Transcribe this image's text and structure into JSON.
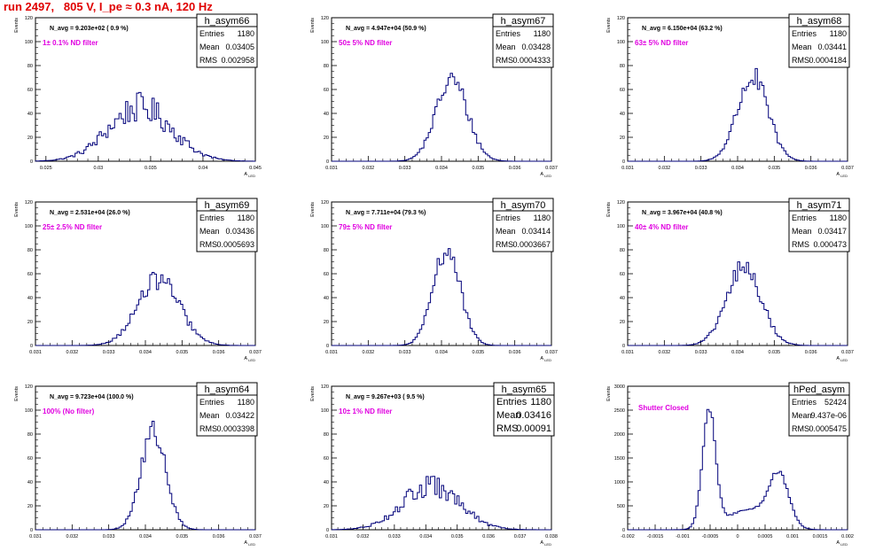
{
  "page": {
    "title": "run 2497,   805 V, I_pe ≈ 0.3 nA, 120 Hz"
  },
  "colors": {
    "hist_line": "#00007a",
    "annotation": "#e000e0",
    "title": "#e00000",
    "axis": "#000000"
  },
  "chart_data": [
    {
      "type": "histogram",
      "name": "h_asym66",
      "navg": "N_avg = 9.203e+02 ( 0.9 %)",
      "filter": "1± 0.1% ND filter",
      "stats": {
        "entries": "1180",
        "mean": "0.03405",
        "rms": "0.002958"
      },
      "ylabel": "Events",
      "xlabel": "A_LED",
      "xlim": [
        0.024,
        0.045
      ],
      "ylim": [
        0,
        120
      ],
      "xticks": [
        "0.025",
        "0.03",
        "0.035",
        "0.04",
        "0.045"
      ],
      "xtick_vals": [
        0.025,
        0.03,
        0.035,
        0.04,
        0.045
      ],
      "yticks": [
        0,
        20,
        40,
        60,
        80,
        100,
        120
      ],
      "peaks": [
        {
          "mu": 0.034,
          "sigma": 0.003,
          "amp": 45
        }
      ],
      "noise": 0.28
    },
    {
      "type": "histogram",
      "name": "h_asym67",
      "navg": "N_avg = 4.947e+04 (50.9 %)",
      "filter": "50± 5% ND filter",
      "stats": {
        "entries": "1180",
        "mean": "0.03428",
        "rms": "0.0004333"
      },
      "ylabel": "Events",
      "xlabel": "A_LED",
      "xlim": [
        0.031,
        0.037
      ],
      "ylim": [
        0,
        120
      ],
      "xticks": [
        "0.031",
        "0.032",
        "0.033",
        "0.034",
        "0.035",
        "0.036",
        "0.037"
      ],
      "xtick_vals": [
        0.031,
        0.032,
        0.033,
        0.034,
        0.035,
        0.036,
        0.037
      ],
      "yticks": [
        0,
        20,
        40,
        60,
        80,
        100,
        120
      ],
      "peaks": [
        {
          "mu": 0.03428,
          "sigma": 0.00043,
          "amp": 68
        }
      ],
      "noise": 0.14
    },
    {
      "type": "histogram",
      "name": "h_asym68",
      "navg": "N_avg = 6.150e+04 (63.2 %)",
      "filter": "63± 5% ND filter",
      "stats": {
        "entries": "1180",
        "mean": "0.03441",
        "rms": "0.0004184"
      },
      "ylabel": "Events",
      "xlabel": "A_LED",
      "xlim": [
        0.031,
        0.037
      ],
      "ylim": [
        0,
        120
      ],
      "xticks": [
        "0.031",
        "0.032",
        "0.033",
        "0.034",
        "0.035",
        "0.036",
        "0.037"
      ],
      "xtick_vals": [
        0.031,
        0.032,
        0.033,
        0.034,
        0.035,
        0.036,
        0.037
      ],
      "yticks": [
        0,
        20,
        40,
        60,
        80,
        100,
        120
      ],
      "peaks": [
        {
          "mu": 0.03441,
          "sigma": 0.00042,
          "amp": 70
        }
      ],
      "noise": 0.14
    },
    {
      "type": "histogram",
      "name": "h_asym69",
      "navg": "N_avg = 2.531e+04 (26.0 %)",
      "filter": "25± 2.5% ND filter",
      "stats": {
        "entries": "1180",
        "mean": "0.03436",
        "rms": "0.0005693"
      },
      "ylabel": "Events",
      "xlabel": "A_LED",
      "xlim": [
        0.031,
        0.037
      ],
      "ylim": [
        0,
        120
      ],
      "xticks": [
        "0.031",
        "0.032",
        "0.033",
        "0.034",
        "0.035",
        "0.036",
        "0.037"
      ],
      "xtick_vals": [
        0.031,
        0.032,
        0.033,
        0.034,
        0.035,
        0.036,
        0.037
      ],
      "yticks": [
        0,
        20,
        40,
        60,
        80,
        100,
        120
      ],
      "peaks": [
        {
          "mu": 0.03436,
          "sigma": 0.00057,
          "amp": 55
        }
      ],
      "noise": 0.16
    },
    {
      "type": "histogram",
      "name": "h_asym70",
      "navg": "N_avg = 7.711e+04 (79.3 %)",
      "filter": "79± 5% ND filter",
      "stats": {
        "entries": "1180",
        "mean": "0.03414",
        "rms": "0.0003667"
      },
      "ylabel": "Events",
      "xlabel": "A_LED",
      "xlim": [
        0.031,
        0.037
      ],
      "ylim": [
        0,
        120
      ],
      "xticks": [
        "0.031",
        "0.032",
        "0.033",
        "0.034",
        "0.035",
        "0.036",
        "0.037"
      ],
      "xtick_vals": [
        0.031,
        0.032,
        0.033,
        0.034,
        0.035,
        0.036,
        0.037
      ],
      "yticks": [
        0,
        20,
        40,
        60,
        80,
        100,
        120
      ],
      "peaks": [
        {
          "mu": 0.03414,
          "sigma": 0.00037,
          "amp": 80
        }
      ],
      "noise": 0.12
    },
    {
      "type": "histogram",
      "name": "h_asym71",
      "navg": "N_avg = 3.967e+04 (40.8 %)",
      "filter": "40± 4% ND filter",
      "stats": {
        "entries": "1180",
        "mean": "0.03417",
        "rms": "0.000473"
      },
      "ylabel": "Events",
      "xlabel": "A_LED",
      "xlim": [
        0.031,
        0.037
      ],
      "ylim": [
        0,
        120
      ],
      "xticks": [
        "0.031",
        "0.032",
        "0.033",
        "0.034",
        "0.035",
        "0.036",
        "0.037"
      ],
      "xtick_vals": [
        0.031,
        0.032,
        0.033,
        0.034,
        0.035,
        0.036,
        0.037
      ],
      "yticks": [
        0,
        20,
        40,
        60,
        80,
        100,
        120
      ],
      "peaks": [
        {
          "mu": 0.03417,
          "sigma": 0.00047,
          "amp": 65
        }
      ],
      "noise": 0.14
    },
    {
      "type": "histogram",
      "name": "h_asym64",
      "navg": "N_avg = 9.723e+04 (100.0 %)",
      "filter": "100% (No filter)",
      "stats": {
        "entries": "1180",
        "mean": "0.03422",
        "rms": "0.0003398"
      },
      "ylabel": "Events",
      "xlabel": "A_LED",
      "xlim": [
        0.031,
        0.037
      ],
      "ylim": [
        0,
        120
      ],
      "xticks": [
        "0.031",
        "0.032",
        "0.033",
        "0.034",
        "0.035",
        "0.036",
        "0.037"
      ],
      "xtick_vals": [
        0.031,
        0.032,
        0.033,
        0.034,
        0.035,
        0.036,
        0.037
      ],
      "yticks": [
        0,
        20,
        40,
        60,
        80,
        100,
        120
      ],
      "peaks": [
        {
          "mu": 0.03422,
          "sigma": 0.00034,
          "amp": 82
        }
      ],
      "noise": 0.12
    },
    {
      "type": "histogram",
      "name": "h_asym65",
      "navg": "N_avg = 9.267e+03 ( 9.5 %)",
      "filter": "10± 1% ND filter",
      "stats": {
        "entries": "1180",
        "mean": "0.03416",
        "rms": "0.00091"
      },
      "ylabel": "Events",
      "xlabel": "A_LED",
      "xlim": [
        0.031,
        0.038
      ],
      "ylim": [
        0,
        120
      ],
      "xticks": [
        "0.031",
        "0.032",
        "0.033",
        "0.034",
        "0.035",
        "0.036",
        "0.037",
        "0.038"
      ],
      "xtick_vals": [
        0.031,
        0.032,
        0.033,
        0.034,
        0.035,
        0.036,
        0.037,
        0.038
      ],
      "yticks": [
        0,
        20,
        40,
        60,
        80,
        100,
        120
      ],
      "peaks": [
        {
          "mu": 0.03416,
          "sigma": 0.00091,
          "amp": 36
        }
      ],
      "noise": 0.25
    },
    {
      "type": "histogram",
      "name": "hPed_asym",
      "navg": "",
      "filter": "Shutter Closed",
      "stats": {
        "entries": "52424",
        "mean": "9.437e-06",
        "rms": "0.0005475"
      },
      "ylabel": "Events",
      "xlabel": "A_LED",
      "xlim": [
        -0.002,
        0.002
      ],
      "ylim": [
        0,
        3000
      ],
      "xticks": [
        "-0.002",
        "-0.0015",
        "-0.001",
        "-0.0005",
        "0",
        "0.0005",
        "0.001",
        "0.0015",
        "0.002"
      ],
      "xtick_vals": [
        -0.002,
        -0.0015,
        -0.001,
        -0.0005,
        0,
        0.0005,
        0.001,
        0.0015,
        0.002
      ],
      "yticks": [
        0,
        500,
        1000,
        1500,
        2000,
        2500,
        3000
      ],
      "peaks": [
        {
          "mu": -0.00052,
          "sigma": 0.00012,
          "amp": 2450
        },
        {
          "mu": 0.00075,
          "sigma": 0.00018,
          "amp": 1050
        },
        {
          "mu": 0.0002,
          "sigma": 0.0004,
          "amp": 420
        }
      ],
      "noise": 0.04
    }
  ]
}
